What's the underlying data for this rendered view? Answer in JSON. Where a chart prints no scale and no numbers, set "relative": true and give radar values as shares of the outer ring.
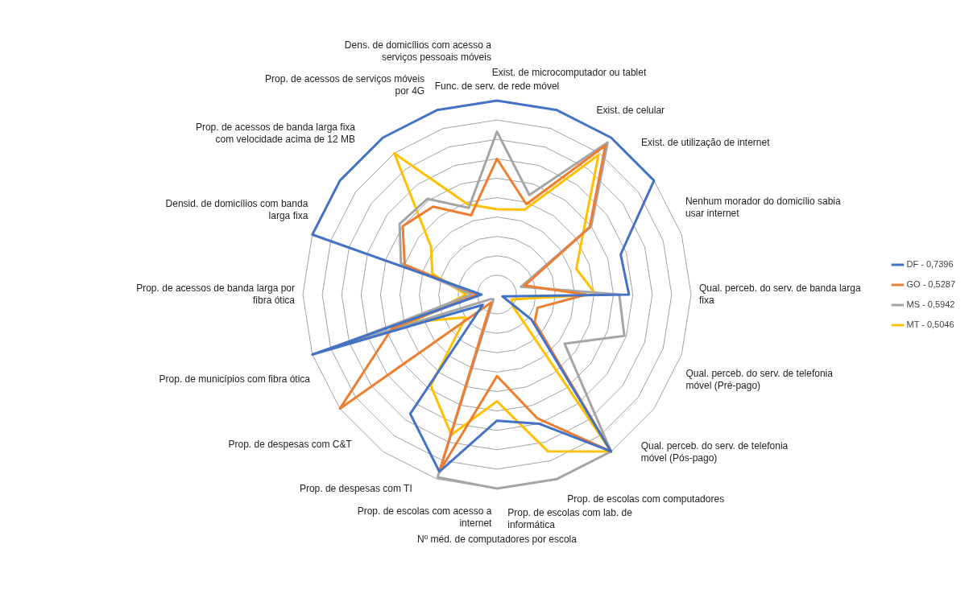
{
  "chart_data": {
    "type": "radar",
    "relative": true,
    "grid": true,
    "legend": "right",
    "marker": "none",
    "line_style": "solid",
    "categories": [
      "Func. de serv. de rede móvel",
      "Exist. de microcomputador ou tablet",
      "Exist. de celular",
      "Exist. de utilização de internet",
      "Nenhum morador do domicílio sabia usar internet",
      "Qual. perceb. do serv. de banda larga fixa",
      "Qual. perceb. do serv. de telefonia móvel (Pré-pago)",
      "Qual. perceb. do serv. de telefonia móvel (Pós-pago)",
      "Prop. de escolas com computadores",
      "Prop. de escolas com lab. de informática",
      "Nº méd. de computadores por escola",
      "Prop. de escolas com acesso a internet",
      "Prop. de despesas com TI",
      "Prop. de despesas com C&T",
      "Prop. de municípios com fibra ótica",
      "Prop. de acessos de banda larga por fibra ótica",
      "Densid. de domicílios com banda larga fixa",
      "Prop. de acessos de banda larga fixa com velocidade acima de 12 MB",
      "Prop. de acessos de serviços móveis por 4G",
      "Dens. de domicílios com acesso a serviços pessoais móveis"
    ],
    "series": [
      {
        "name": "DF - 0,7396",
        "color": "#4472c4",
        "values": [
          1.0,
          1.0,
          1.0,
          1.0,
          0.67,
          0.68,
          0.03,
          0.22,
          1.0,
          0.7,
          0.65,
          0.96,
          0.76,
          0.09,
          1.0,
          0.08,
          1.0,
          1.0,
          1.0,
          1.0
        ]
      },
      {
        "name": "GO - 0,5287",
        "color": "#ed7d31",
        "values": [
          0.7,
          0.49,
          0.95,
          0.59,
          0.15,
          0.46,
          0.22,
          0.24,
          1.0,
          0.67,
          0.42,
          0.96,
          0.05,
          1.0,
          0.57,
          0.1,
          0.5,
          0.6,
          0.56,
          0.43
        ]
      },
      {
        "name": "MS - 0,5942",
        "color": "#a5a5a5",
        "values": [
          0.84,
          0.54,
          0.97,
          0.6,
          0.13,
          0.63,
          0.69,
          0.43,
          1.0,
          1.0,
          1.0,
          0.99,
          0.03,
          0.04,
          0.9,
          0.13,
          0.52,
          0.62,
          0.61,
          0.47
        ]
      },
      {
        "name": "MT - 0,5046",
        "color": "#ffc000",
        "values": [
          0.44,
          0.46,
          0.89,
          0.55,
          0.43,
          0.51,
          0.08,
          0.1,
          1.0,
          0.85,
          0.55,
          0.76,
          0.58,
          0.2,
          0.46,
          0.16,
          0.35,
          0.42,
          0.9,
          0.49
        ]
      }
    ]
  }
}
